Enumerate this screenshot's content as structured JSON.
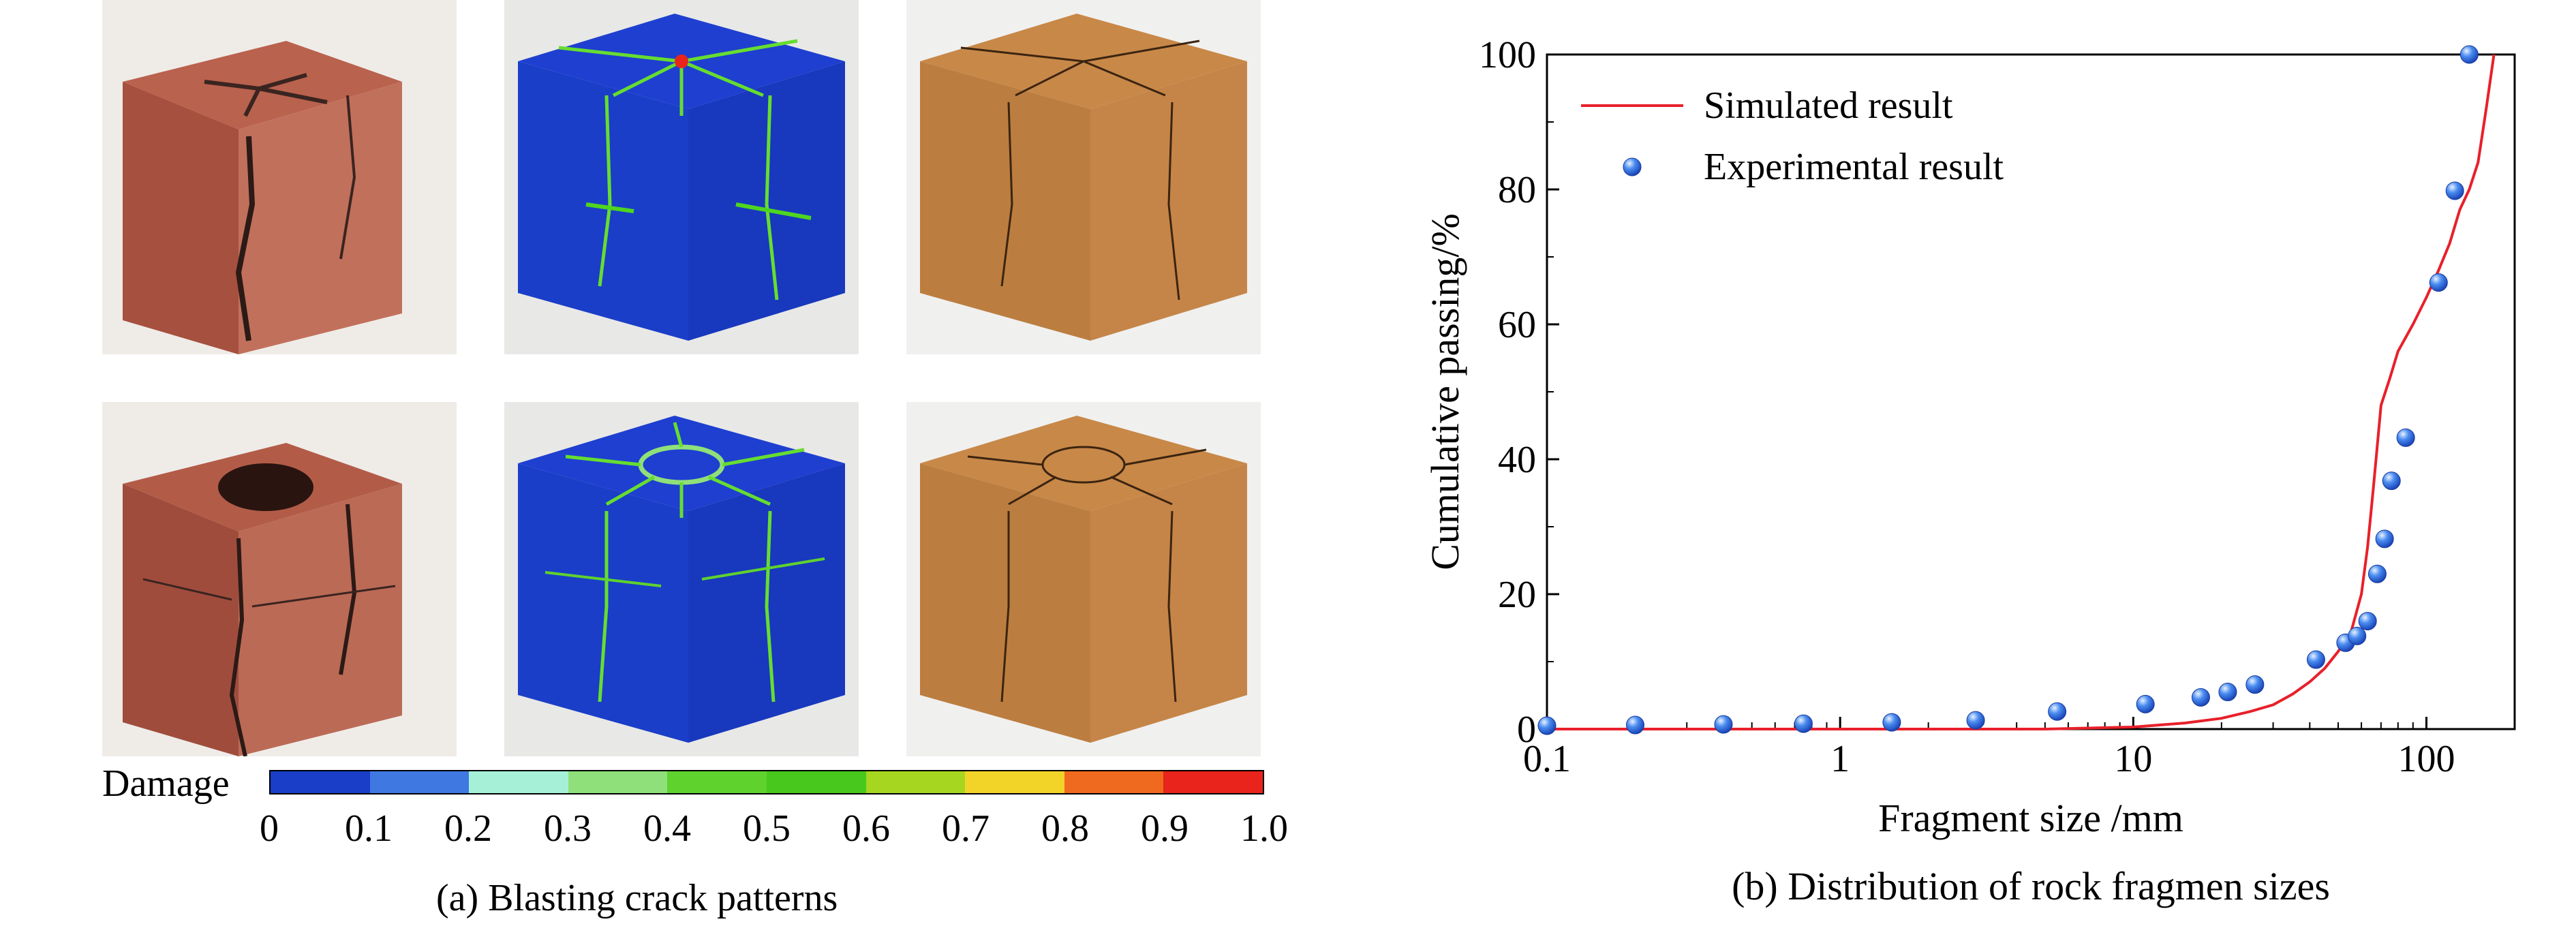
{
  "panel_a": {
    "caption": "(a) Blasting crack patterns",
    "damage_label": "Damage",
    "colorbar": {
      "ticks": [
        "0",
        "0.1",
        "0.2",
        "0.3",
        "0.4",
        "0.5",
        "0.6",
        "0.7",
        "0.8",
        "0.9",
        "1.0"
      ],
      "colors": [
        "#1a3ec8",
        "#3f78e0",
        "#a7f0d8",
        "#8fe07a",
        "#5fd22e",
        "#48c81c",
        "#a6d620",
        "#f2d428",
        "#ef6a1e",
        "#e8241c"
      ]
    },
    "images": [
      {
        "name": "experiment-photo-1",
        "kind": "photo",
        "row": 1
      },
      {
        "name": "damage-cube-1",
        "kind": "damage",
        "row": 1
      },
      {
        "name": "crack-cube-1",
        "kind": "crack",
        "row": 1
      },
      {
        "name": "experiment-photo-2",
        "kind": "photo",
        "row": 2
      },
      {
        "name": "damage-cube-2",
        "kind": "damage",
        "row": 2
      },
      {
        "name": "crack-cube-2",
        "kind": "crack",
        "row": 2
      }
    ]
  },
  "chart_data": {
    "type": "scatter",
    "caption": "(b) Distribution of rock fragmen sizes",
    "xlabel": "Fragment size /mm",
    "ylabel": "Cumulative passing/%",
    "xscale": "log",
    "xlim": [
      0.1,
      200
    ],
    "ylim": [
      0,
      100
    ],
    "xticks": [
      0.1,
      1,
      10,
      100
    ],
    "xtick_labels": [
      "0.1",
      "1",
      "10",
      "100"
    ],
    "yticks": [
      0,
      20,
      40,
      60,
      80,
      100
    ],
    "ytick_labels": [
      "0",
      "20",
      "40",
      "60",
      "80",
      "100"
    ],
    "legend_position": "top-left",
    "series": [
      {
        "name": "Simulated result",
        "kind": "line",
        "color": "#e8202a",
        "x": [
          1,
          5,
          10,
          15,
          20,
          25,
          30,
          35,
          40,
          45,
          50,
          55,
          60,
          63,
          66,
          70,
          75,
          80,
          90,
          100,
          110,
          120,
          130,
          140,
          150,
          160,
          170
        ],
        "y": [
          0,
          0,
          0.3,
          0.9,
          1.6,
          2.6,
          3.6,
          5.2,
          7.0,
          9.0,
          11.5,
          14.0,
          20.0,
          27.0,
          36.0,
          48.0,
          52.0,
          56.0,
          60.0,
          64.0,
          68.0,
          72.0,
          77.0,
          80.0,
          84.0,
          92.0,
          100.0
        ]
      },
      {
        "name": "Experimental result",
        "kind": "scatter",
        "color": "#2a6fe0",
        "x": [
          0.1,
          0.2,
          0.4,
          0.75,
          1.5,
          2.9,
          5.5,
          11,
          17,
          21,
          26,
          42,
          53,
          58,
          63,
          68,
          72,
          76,
          85,
          110,
          125,
          140
        ],
        "y": [
          0.5,
          0.6,
          0.7,
          0.8,
          1.0,
          1.3,
          2.6,
          3.7,
          4.7,
          5.5,
          6.6,
          10.3,
          12.8,
          13.8,
          16.0,
          23.0,
          28.2,
          36.8,
          43.2,
          66.2,
          79.8,
          100
        ]
      }
    ]
  }
}
